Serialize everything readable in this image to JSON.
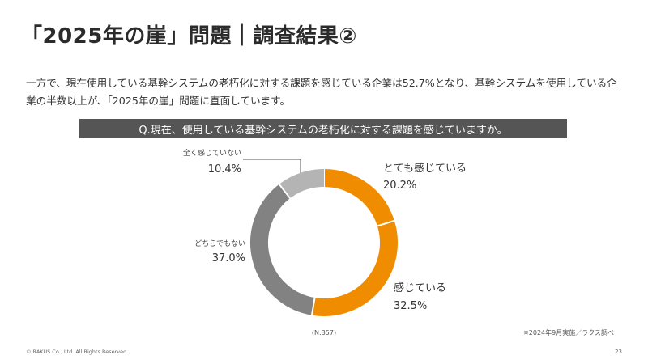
{
  "slide": {
    "title": "「2025年の崖」問題｜調査結果②",
    "body": "一方で、現在使用している基幹システムの老朽化に対する課題を感じている企業は52.7%となり、基幹システムを使用している企業の半数以上が、「2025年の崖」問題に直面しています。",
    "question": "Q.現在、使用している基幹システムの老朽化に対する課題を感じていますか。",
    "copyright": "© RAKUS Co., Ltd. All Rights Reserved.",
    "page_number": "23"
  },
  "chart_data": {
    "type": "pie",
    "donut": true,
    "slices": [
      {
        "label": "とても感じている",
        "value": 20.2,
        "display": "20.2%",
        "color": "#f08c00"
      },
      {
        "label": "感じている",
        "value": 32.5,
        "display": "32.5%",
        "color": "#f08c00"
      },
      {
        "label": "どちらでもない",
        "value": 37.0,
        "display": "37.0%",
        "color": "#828282"
      },
      {
        "label": "全く感じていない",
        "value": 10.4,
        "display": "10.4%",
        "color": "#b4b4b4"
      }
    ],
    "sample_note": "(N:357)",
    "source_note": "※2024年9月実施／ラクス調べ"
  }
}
